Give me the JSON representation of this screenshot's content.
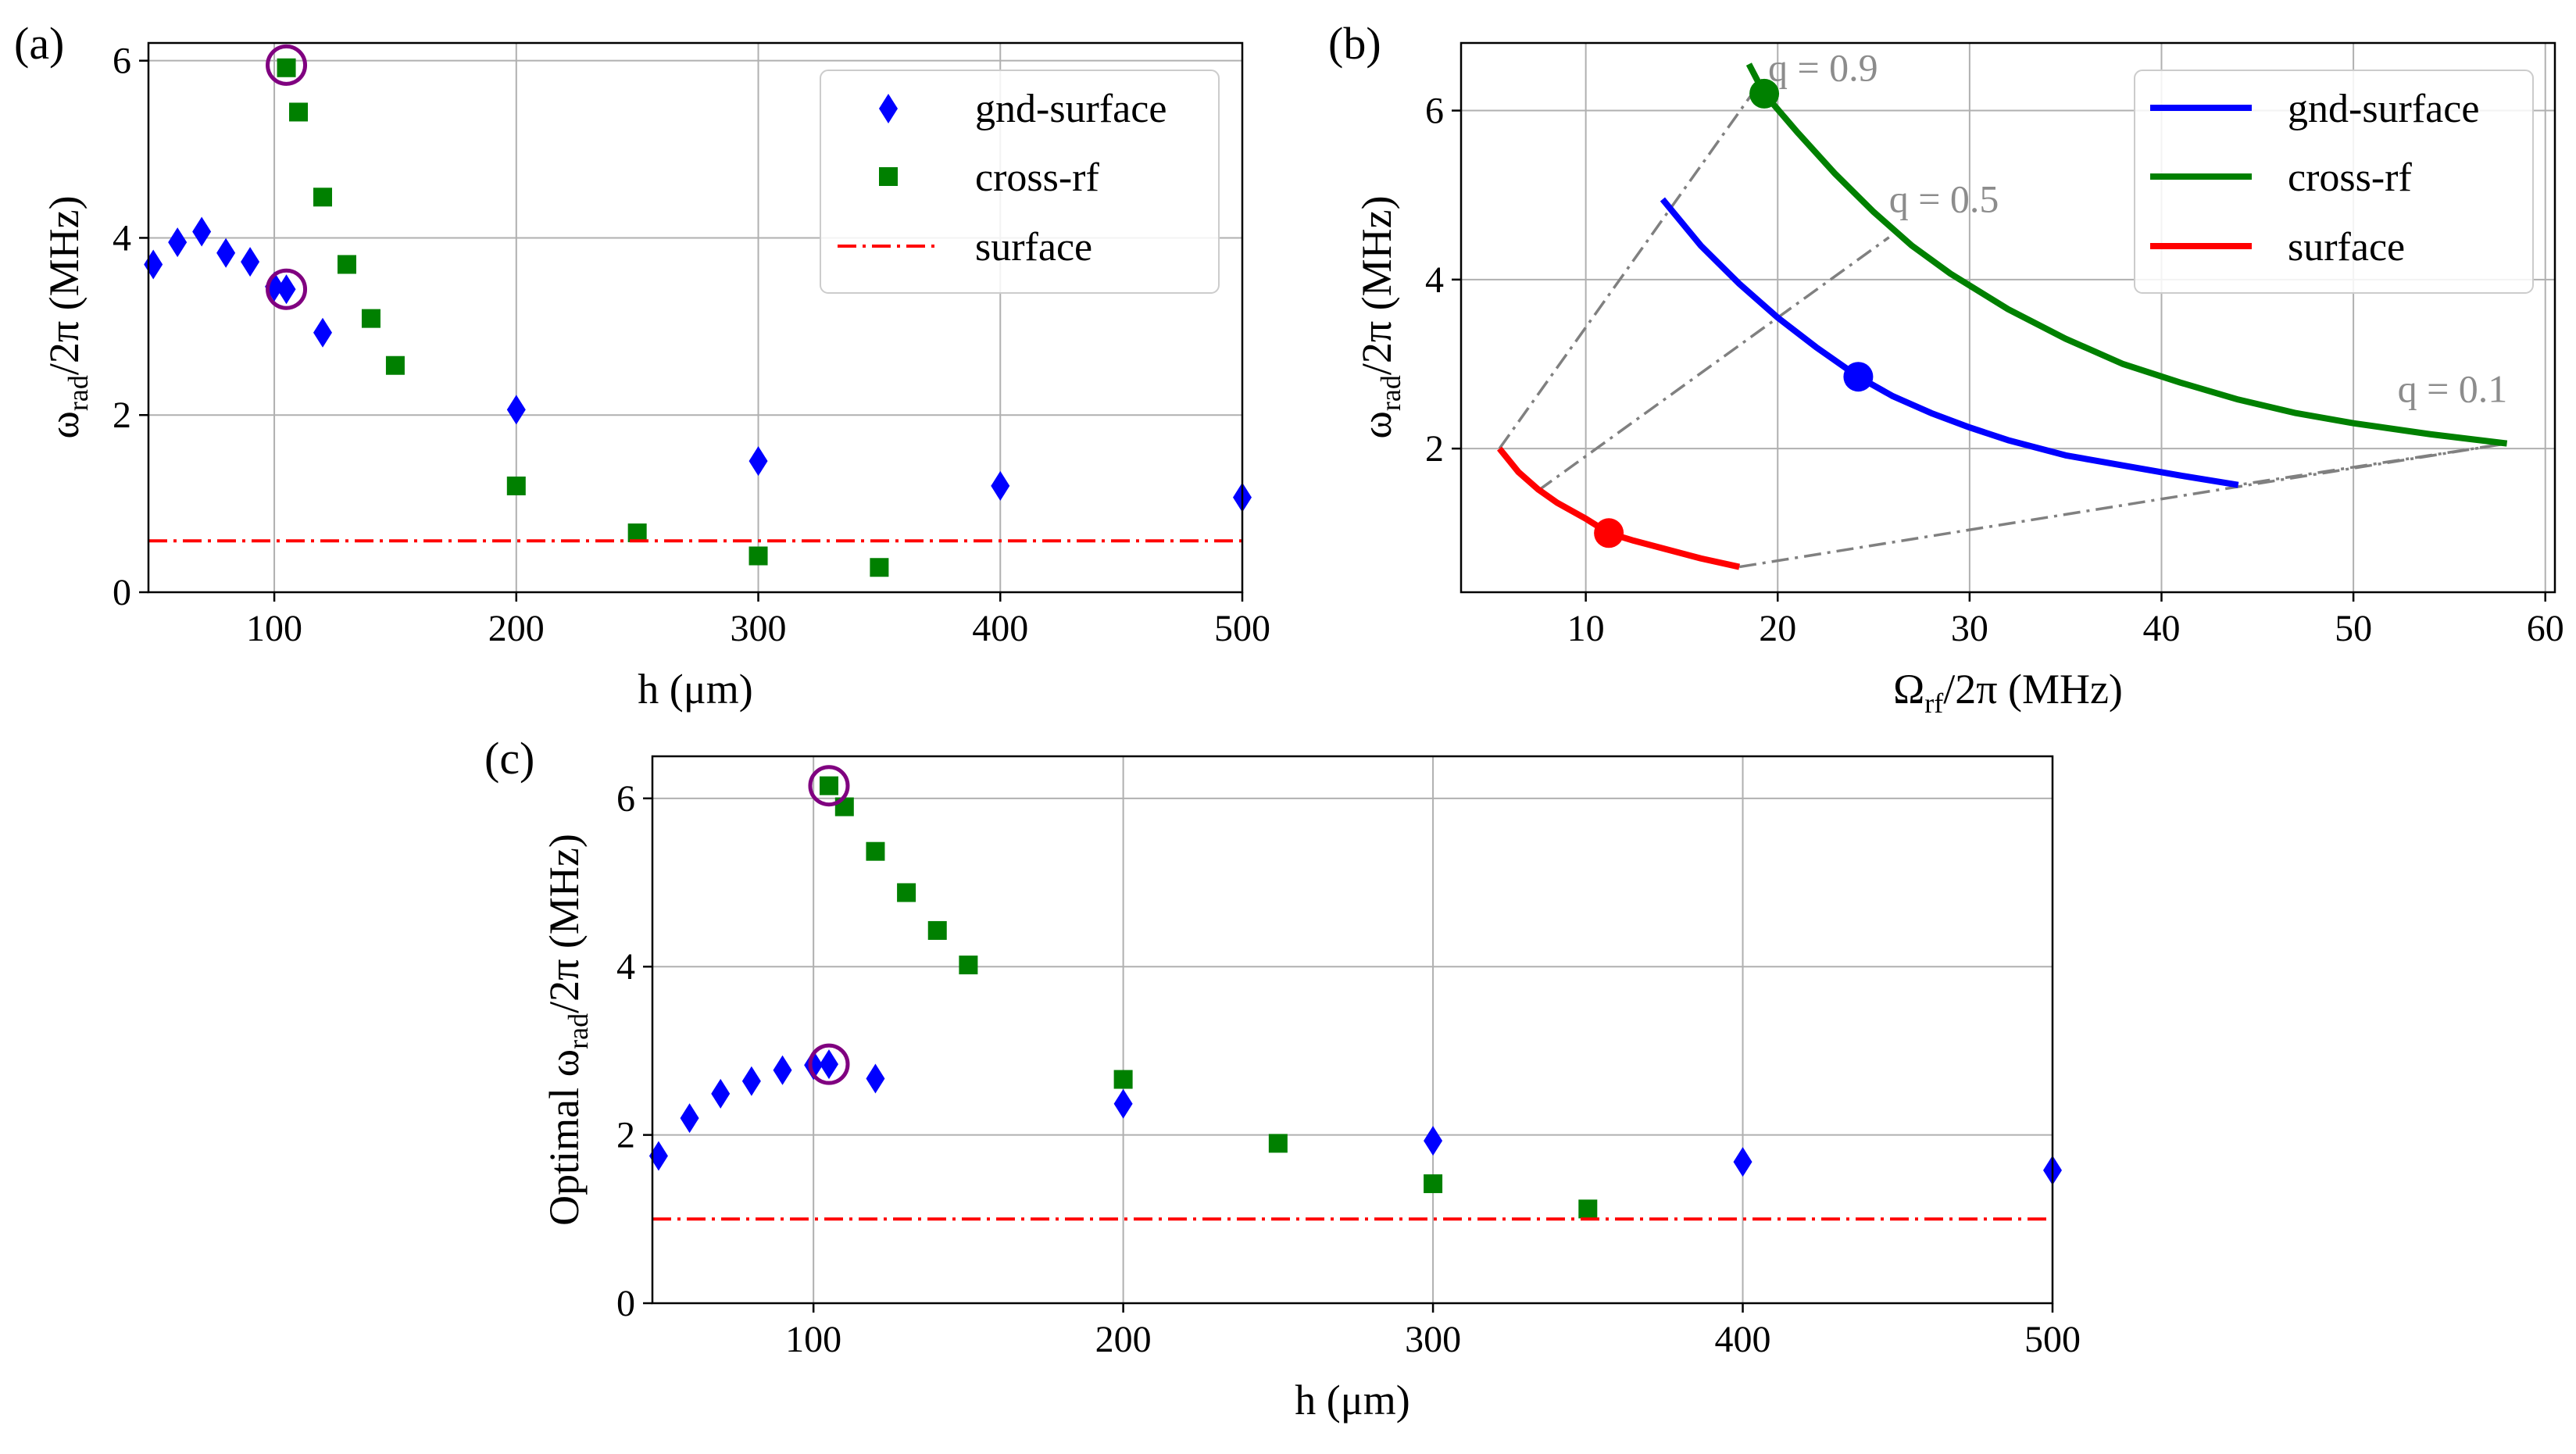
{
  "colors": {
    "gnd": "#0000ff",
    "cross": "#008000",
    "surface": "#ff0000",
    "circle": "#800080",
    "qline": "#808080"
  },
  "chart_data": [
    {
      "id": "a",
      "type": "scatter",
      "panel_label": "(a)",
      "xlabel": "h (μm)",
      "ylabel_parts": [
        "ω",
        "rad",
        "/2π (MHz)"
      ],
      "xlim": [
        48,
        500
      ],
      "ylim": [
        0,
        6.2
      ],
      "xticks": [
        100,
        200,
        300,
        400,
        500
      ],
      "yticks": [
        0,
        2,
        4,
        6
      ],
      "grid": true,
      "legend_position": "top-right",
      "series": [
        {
          "name": "gnd-surface",
          "marker": "diamond",
          "x": [
            50,
            60,
            70,
            80,
            90,
            100,
            105,
            120,
            200,
            300,
            400,
            500
          ],
          "y": [
            3.7,
            3.95,
            4.07,
            3.83,
            3.73,
            3.45,
            3.42,
            2.93,
            2.06,
            1.48,
            1.2,
            1.07
          ]
        },
        {
          "name": "cross-rf",
          "marker": "square",
          "x": [
            105,
            110,
            120,
            130,
            140,
            150,
            200,
            250,
            300,
            350
          ],
          "y": [
            5.92,
            5.42,
            4.46,
            3.7,
            3.09,
            2.56,
            1.2,
            0.67,
            0.41,
            0.28
          ]
        },
        {
          "name": "surface",
          "marker": "dashdot",
          "y_const": 0.58
        }
      ],
      "highlight_circles": [
        {
          "x": 105,
          "y": 5.95
        },
        {
          "x": 105,
          "y": 3.42
        }
      ]
    },
    {
      "id": "b",
      "type": "line",
      "panel_label": "(b)",
      "xlabel_parts": [
        "Ω",
        "rf",
        "/2π (MHz)"
      ],
      "ylabel_parts": [
        "ω",
        "rad",
        "/2π (MHz)"
      ],
      "xlim": [
        3.5,
        60.5
      ],
      "ylim": [
        0.3,
        6.8
      ],
      "xticks": [
        10,
        20,
        30,
        40,
        50,
        60
      ],
      "yticks": [
        2,
        4,
        6
      ],
      "grid": true,
      "legend_position": "top-right",
      "series": [
        {
          "name": "gnd-surface",
          "x": [
            14,
            16,
            18,
            20,
            22,
            24.2,
            26,
            28,
            30,
            32,
            35,
            38,
            41,
            44
          ],
          "y": [
            4.95,
            4.4,
            3.95,
            3.55,
            3.2,
            2.85,
            2.62,
            2.42,
            2.25,
            2.1,
            1.92,
            1.8,
            1.68,
            1.57
          ]
        },
        {
          "name": "cross-rf",
          "x": [
            18.5,
            19.3,
            21,
            23,
            25,
            27,
            29,
            32,
            35,
            38,
            41,
            44,
            47,
            50,
            54,
            58
          ],
          "y": [
            6.55,
            6.2,
            5.75,
            5.25,
            4.8,
            4.4,
            4.07,
            3.65,
            3.3,
            3.0,
            2.78,
            2.58,
            2.42,
            2.3,
            2.17,
            2.06
          ]
        },
        {
          "name": "surface",
          "x": [
            5.5,
            6.5,
            7.5,
            8.5,
            10,
            11.2,
            12.5,
            14,
            16,
            18
          ],
          "y": [
            2.0,
            1.72,
            1.52,
            1.36,
            1.17,
            1.0,
            0.91,
            0.82,
            0.7,
            0.6
          ]
        }
      ],
      "operating_points": [
        {
          "series": "gnd-surface",
          "x": 24.2,
          "y": 2.85
        },
        {
          "series": "cross-rf",
          "x": 19.3,
          "y": 6.2
        },
        {
          "series": "surface",
          "x": 11.2,
          "y": 1.0
        }
      ],
      "q_lines": [
        {
          "label": "q = 0.9",
          "points": [
            [
              5.5,
              2.0
            ],
            [
              19.3,
              6.4
            ]
          ],
          "label_at": [
            19.5,
            6.35
          ]
        },
        {
          "label": "q = 0.5",
          "points": [
            [
              7.5,
              1.5
            ],
            [
              25.8,
              4.5
            ]
          ],
          "label_at": [
            25.8,
            4.8
          ]
        },
        {
          "label": "q = 0.1",
          "points": [
            [
              18,
              0.6
            ],
            [
              58,
              2.06
            ],
            [
              44,
              1.57
            ]
          ],
          "label_at": [
            52.3,
            2.55
          ]
        }
      ]
    },
    {
      "id": "c",
      "type": "scatter",
      "panel_label": "(c)",
      "xlabel": "h (μm)",
      "ylabel_parts": [
        "Optimal ω",
        "rad",
        "/2π (MHz)"
      ],
      "xlim": [
        48,
        500
      ],
      "ylim": [
        0,
        6.5
      ],
      "xticks": [
        100,
        200,
        300,
        400,
        500
      ],
      "yticks": [
        0,
        2,
        4,
        6
      ],
      "grid": true,
      "series": [
        {
          "name": "gnd-surface",
          "marker": "diamond",
          "x": [
            50,
            60,
            70,
            80,
            90,
            100,
            105,
            120,
            200,
            300,
            400,
            500
          ],
          "y": [
            1.75,
            2.2,
            2.49,
            2.64,
            2.77,
            2.83,
            2.84,
            2.67,
            2.37,
            1.93,
            1.68,
            1.58
          ]
        },
        {
          "name": "cross-rf",
          "marker": "square",
          "x": [
            105,
            110,
            120,
            130,
            140,
            150,
            200,
            250,
            300,
            350
          ],
          "y": [
            6.15,
            5.9,
            5.37,
            4.88,
            4.43,
            4.02,
            2.66,
            1.9,
            1.42,
            1.12
          ]
        },
        {
          "name": "surface",
          "marker": "dashdot",
          "y_const": 1.0
        }
      ],
      "highlight_circles": [
        {
          "x": 105,
          "y": 6.15
        },
        {
          "x": 105,
          "y": 2.84
        }
      ]
    }
  ]
}
